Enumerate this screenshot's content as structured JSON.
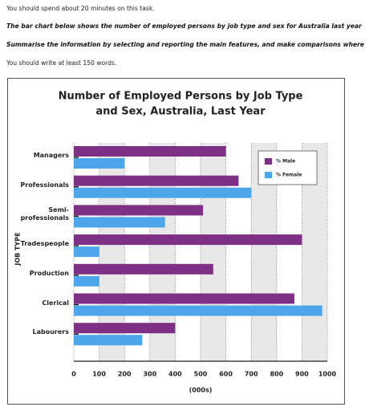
{
  "instructions": [
    "You should spend about 20 minutes on this task.",
    "The bar chart below shows the number of employed persons by job type and sex for Australia last year",
    "Summarise the information by selecting and reporting the main features, and make comparisons where relevant.",
    "You should write at least 150 words."
  ],
  "chart_data": {
    "type": "bar",
    "orientation": "horizontal",
    "title": [
      "Number of Employed Persons by Job Type",
      "and Sex, Australia, Last Year"
    ],
    "x_label": "(000s)",
    "y_label": "JOB TYPE",
    "categories": [
      "Managers",
      "Professionals",
      "Semi-professionals",
      "Tradespeople",
      "Production",
      "Clerical",
      "Labourers"
    ],
    "series": [
      {
        "name": "% Male",
        "color": "#7e2f86",
        "values": [
          600,
          650,
          510,
          900,
          550,
          870,
          400
        ]
      },
      {
        "name": "% Female",
        "color": "#4ea6ea",
        "values": [
          200,
          700,
          360,
          100,
          100,
          980,
          270
        ]
      }
    ],
    "xlim": [
      0,
      1000
    ],
    "xticks": [
      0,
      100,
      200,
      300,
      400,
      500,
      600,
      700,
      800,
      900,
      1000
    ],
    "grid": true,
    "legend": "top-right"
  }
}
